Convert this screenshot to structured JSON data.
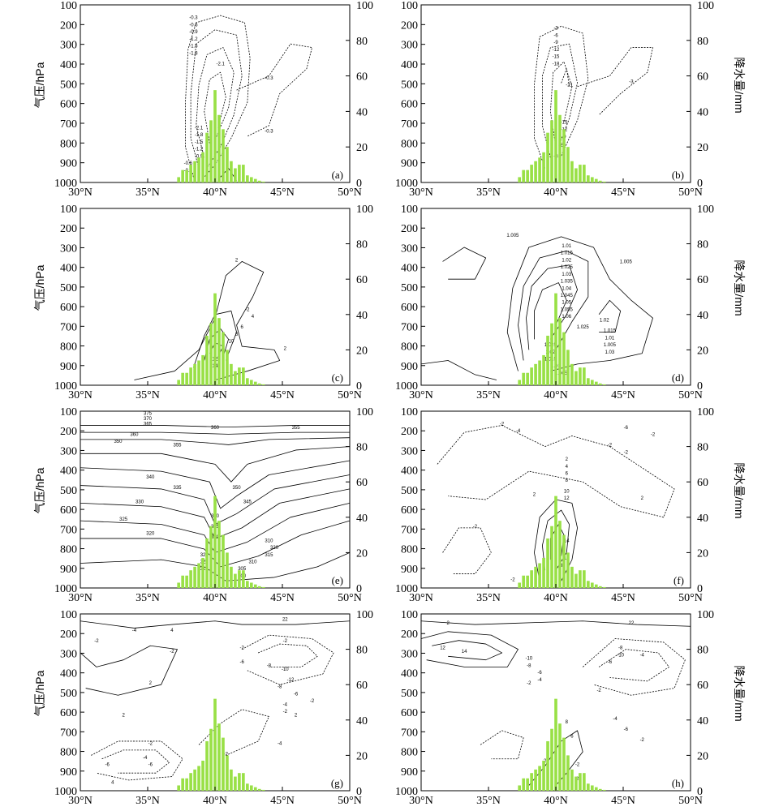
{
  "figure": {
    "left_axis_title": "气压/hPa",
    "right_axis_title": "降水量/mm",
    "pressure_ticks": [
      "100",
      "200",
      "300",
      "400",
      "500",
      "600",
      "700",
      "800",
      "900",
      "1000"
    ],
    "precip_ticks": [
      "100",
      "80",
      "60",
      "40",
      "20",
      "0"
    ],
    "lat_ticks": [
      "30°N",
      "35°N",
      "40°N",
      "45°N",
      "50°N"
    ],
    "bar_color": "#99e046"
  },
  "chart_data": [
    {
      "panel": "(a)",
      "type": "contour+bar",
      "x": [
        30,
        35,
        40,
        45,
        50
      ],
      "ylim_pressure": [
        1000,
        100
      ],
      "ylim_precip": [
        0,
        100
      ],
      "contour_labels": [
        "-0.3",
        "-0.6",
        "-0.9",
        "-1.2",
        "-1.5",
        "-1.8",
        "-2.1",
        "-0.3",
        "-0.3",
        "-2.1",
        "-1.8",
        "-1.5",
        "-1.2",
        "-0.9",
        "-0.6",
        "-0.3"
      ],
      "precip": {
        "x": [
          37.3,
          37.6,
          37.9,
          38.2,
          38.5,
          38.8,
          39.1,
          39.4,
          39.7,
          40.0,
          40.3,
          40.6,
          40.9,
          41.2,
          41.5,
          41.8,
          42.1,
          42.4,
          42.7,
          43.0,
          43.3,
          43.6
        ],
        "y": [
          3,
          7,
          7,
          10,
          12,
          14,
          17,
          28,
          35,
          52,
          38,
          30,
          20,
          12,
          8,
          10,
          10,
          4,
          3,
          2,
          1,
          0.5
        ]
      }
    },
    {
      "panel": "(b)",
      "type": "contour+bar",
      "contour_labels": [
        "-3",
        "-6",
        "-9",
        "-12",
        "-15",
        "-18",
        "-21",
        "-3",
        "-15",
        "-12",
        "-9",
        "-6",
        "-3"
      ],
      "precip": {
        "x": [
          37.3,
          37.6,
          37.9,
          38.2,
          38.5,
          38.8,
          39.1,
          39.4,
          39.7,
          40.0,
          40.3,
          40.6,
          40.9,
          41.2,
          41.5,
          41.8,
          42.1,
          42.4,
          42.7,
          43.0,
          43.3,
          43.6
        ],
        "y": [
          3,
          7,
          7,
          10,
          12,
          14,
          17,
          28,
          35,
          52,
          38,
          30,
          20,
          12,
          8,
          10,
          10,
          4,
          3,
          2,
          1,
          0.5
        ]
      }
    },
    {
      "panel": "(c)",
      "type": "contour+bar",
      "contour_labels": [
        "2",
        "-2",
        "4",
        "6",
        "8",
        "10",
        "12",
        "14",
        "2"
      ],
      "precip": {
        "x": [
          37.3,
          37.6,
          37.9,
          38.2,
          38.5,
          38.8,
          39.1,
          39.4,
          39.7,
          40.0,
          40.3,
          40.6,
          40.9,
          41.2,
          41.5,
          41.8,
          42.1,
          42.4,
          42.7,
          43.0,
          43.3,
          43.6
        ],
        "y": [
          3,
          7,
          7,
          10,
          12,
          14,
          17,
          28,
          35,
          52,
          38,
          30,
          20,
          12,
          8,
          10,
          10,
          4,
          3,
          2,
          1,
          0.5
        ]
      }
    },
    {
      "panel": "(d)",
      "type": "contour+bar",
      "contour_labels": [
        "1.005",
        "1.01",
        "1.015",
        "1.02",
        "1.025",
        "1.03",
        "1.035",
        "1.04",
        "1.045",
        "1.05",
        "1.055",
        "1.06",
        "1.005",
        "1.025",
        "1.02",
        "1.015",
        "1.01",
        "1.005",
        "1.03",
        "1.025",
        "1.02",
        "1.015",
        "1.01",
        "1.005"
      ],
      "precip": {
        "x": [
          37.3,
          37.6,
          37.9,
          38.2,
          38.5,
          38.8,
          39.1,
          39.4,
          39.7,
          40.0,
          40.3,
          40.6,
          40.9,
          41.2,
          41.5,
          41.8,
          42.1,
          42.4,
          42.7,
          43.0,
          43.3,
          43.6
        ],
        "y": [
          3,
          7,
          7,
          10,
          12,
          14,
          17,
          28,
          35,
          52,
          38,
          30,
          20,
          12,
          8,
          10,
          10,
          4,
          3,
          2,
          1,
          0.5
        ]
      }
    },
    {
      "panel": "(e)",
      "type": "contour+bar",
      "contour_labels": [
        "375",
        "370",
        "365",
        "360",
        "360",
        "355",
        "350",
        "355",
        "340",
        "335",
        "330",
        "325",
        "320",
        "350",
        "345",
        "340",
        "335",
        "330",
        "325",
        "320",
        "315",
        "310",
        "320",
        "315",
        "310",
        "305",
        "300"
      ],
      "precip": {
        "x": [
          37.3,
          37.6,
          37.9,
          38.2,
          38.5,
          38.8,
          39.1,
          39.4,
          39.7,
          40.0,
          40.3,
          40.6,
          40.9,
          41.2,
          41.5,
          41.8,
          42.1,
          42.4,
          42.7,
          43.0,
          43.3,
          43.6
        ],
        "y": [
          3,
          7,
          7,
          10,
          12,
          14,
          17,
          28,
          35,
          52,
          38,
          30,
          20,
          12,
          8,
          10,
          10,
          4,
          3,
          2,
          1,
          0.5
        ]
      }
    },
    {
      "panel": "(f)",
      "type": "contour+bar",
      "contour_labels": [
        "-2",
        "-4",
        "-6",
        "-2",
        "-2",
        "-2",
        "2",
        "4",
        "6",
        "8",
        "10",
        "12",
        "14",
        "10",
        "8",
        "6",
        "4",
        "2",
        "2",
        "-2",
        "-2"
      ],
      "precip": {
        "x": [
          37.3,
          37.6,
          37.9,
          38.2,
          38.5,
          38.8,
          39.1,
          39.4,
          39.7,
          40.0,
          40.3,
          40.6,
          40.9,
          41.2,
          41.5,
          41.8,
          42.1,
          42.4,
          42.7,
          43.0,
          43.3,
          43.6
        ],
        "y": [
          3,
          7,
          7,
          10,
          12,
          14,
          17,
          28,
          35,
          52,
          38,
          30,
          20,
          12,
          8,
          10,
          10,
          4,
          3,
          2,
          1,
          0.5
        ]
      }
    },
    {
      "panel": "(g)",
      "type": "contour+bar",
      "contour_labels": [
        "-2",
        "-4",
        "-6",
        "2",
        "4",
        "-2",
        "-2",
        "-2",
        "-6",
        "-8",
        "-10",
        "-12",
        "-8",
        "-6",
        "-4",
        "-2",
        "2",
        "-2",
        "-4",
        "-6",
        "-2",
        "-4",
        "4",
        "2",
        "-2",
        "22"
      ],
      "precip": {
        "x": [
          37.3,
          37.6,
          37.9,
          38.2,
          38.5,
          38.8,
          39.1,
          39.4,
          39.7,
          40.0,
          40.3,
          40.6,
          40.9,
          41.2,
          41.5,
          41.8,
          42.1,
          42.4,
          42.7,
          43.0,
          43.3,
          43.6
        ],
        "y": [
          3,
          7,
          7,
          10,
          12,
          14,
          17,
          28,
          35,
          52,
          38,
          30,
          20,
          12,
          8,
          10,
          10,
          4,
          3,
          2,
          1,
          0.5
        ]
      }
    },
    {
      "panel": "(h)",
      "type": "contour+bar",
      "contour_labels": [
        "12",
        "14",
        "2",
        "-10",
        "-8",
        "-6",
        "-4",
        "-2",
        "22",
        "-8",
        "-10",
        "-6",
        "-4",
        "-2",
        "2",
        "4",
        "6",
        "8",
        "-2",
        "-4",
        "-6",
        "-2",
        "2"
      ],
      "precip": {
        "x": [
          37.3,
          37.6,
          37.9,
          38.2,
          38.5,
          38.8,
          39.1,
          39.4,
          39.7,
          40.0,
          40.3,
          40.6,
          40.9,
          41.2,
          41.5,
          41.8,
          42.1,
          42.4,
          42.7,
          43.0,
          43.3,
          43.6
        ],
        "y": [
          3,
          7,
          7,
          10,
          12,
          14,
          17,
          28,
          35,
          52,
          38,
          30,
          20,
          12,
          8,
          10,
          10,
          4,
          3,
          2,
          1,
          0.5
        ]
      }
    }
  ]
}
